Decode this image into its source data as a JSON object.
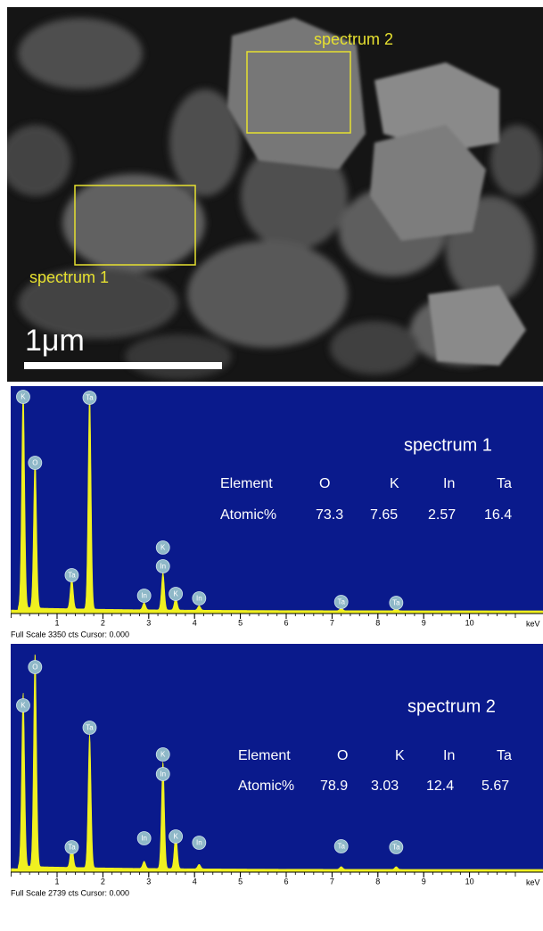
{
  "image": {
    "regions": [
      {
        "label": "spectrum 2"
      },
      {
        "label": "spectrum 1"
      }
    ],
    "scale_bar": "1μm"
  },
  "spectra": [
    {
      "title": "spectrum 1",
      "table": {
        "header": [
          "Element",
          "O",
          "K",
          "In",
          "Ta"
        ],
        "row": [
          "Atomic%",
          "73.3",
          "7.65",
          "2.57",
          "16.4"
        ]
      },
      "peak_labels": [
        "K",
        "O",
        "Ta",
        "Ta",
        "K",
        "In",
        "In",
        "K",
        "In",
        "Ta",
        "Ta"
      ],
      "x_ticks": [
        1,
        2,
        3,
        4,
        5,
        6,
        7,
        8,
        9,
        10
      ],
      "unit": "keV",
      "footer": "Full Scale 3350 cts Cursor: 0.000"
    },
    {
      "title": "spectrum 2",
      "table": {
        "header": [
          "Element",
          "O",
          "K",
          "In",
          "Ta"
        ],
        "row": [
          "Atomic%",
          "78.9",
          "3.03",
          "12.4",
          "5.67"
        ]
      },
      "peak_labels": [
        "O",
        "K",
        "Ta",
        "Ta",
        "K",
        "In",
        "In",
        "K",
        "In",
        "Ta",
        "Ta"
      ],
      "x_ticks": [
        1,
        2,
        3,
        4,
        5,
        6,
        7,
        8,
        9,
        10
      ],
      "unit": "keV",
      "footer": "Full Scale 2739 cts Cursor: 0.000"
    }
  ]
}
